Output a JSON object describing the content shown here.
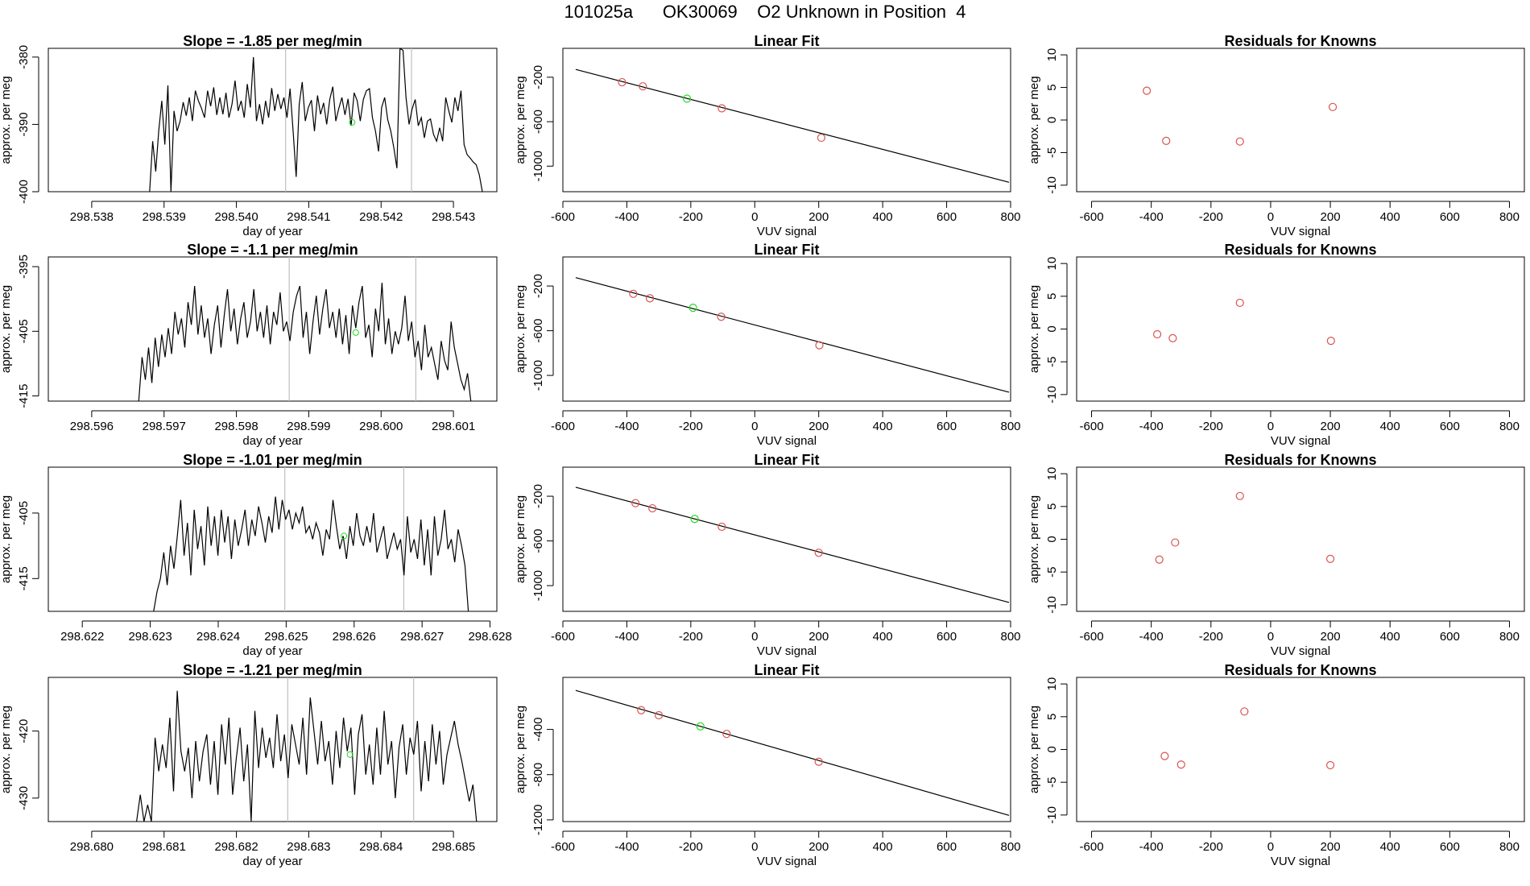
{
  "header": {
    "title": "101025a      OK30069    O2 Unknown in Position  4"
  },
  "colors": {
    "known": "#d9534f",
    "unknown": "#22dd22",
    "line": "#000000",
    "vline": "#bfbfbf"
  },
  "chart_data": [
    {
      "type": "line",
      "panel": "timeseries-1",
      "title": "Slope =  -1.85  per meg/min",
      "xlabel": "day of year",
      "ylabel": "approx. per meg",
      "xlim": [
        298.5374,
        298.5436
      ],
      "ylim": [
        -400,
        -378.7
      ],
      "xticks": [
        298.538,
        298.539,
        298.54,
        298.541,
        298.542,
        298.543
      ],
      "xtick_labels": [
        "298.538",
        "298.539",
        "298.540",
        "298.541",
        "298.542",
        "298.543"
      ],
      "yticks": [
        -380,
        -390,
        -400
      ],
      "ytick_labels": [
        "-380",
        "-390",
        "-400"
      ],
      "x_start": 298.5388,
      "x_end": 298.5434,
      "series_values": [
        -400,
        -392.5,
        -397,
        -391,
        -386.5,
        -393,
        -384.2,
        -400,
        -388,
        -391,
        -389.5,
        -386.7,
        -388.7,
        -386,
        -389.5,
        -385,
        -386.5,
        -387.6,
        -389,
        -385,
        -387.3,
        -384.5,
        -388.6,
        -386,
        -388.5,
        -385.3,
        -389,
        -387,
        -383.5,
        -388,
        -386.5,
        -389,
        -384,
        -387.5,
        -380,
        -389.5,
        -387,
        -390,
        -386.5,
        -389,
        -384.6,
        -388,
        -385.5,
        -387.7,
        -386,
        -389,
        -384.7,
        -391,
        -397.8,
        -387,
        -383.7,
        -389.5,
        -387.5,
        -386.4,
        -391,
        -385.7,
        -388.5,
        -386.8,
        -390,
        -386.3,
        -384.4,
        -389.5,
        -387.6,
        -386,
        -388.6,
        -386.2,
        -390.2,
        -385.3,
        -386.5,
        -389.5,
        -386.3,
        -385,
        -384.7,
        -389,
        -391,
        -394,
        -387.5,
        -386,
        -389.3,
        -391,
        -393.5,
        -396.5,
        -378.7,
        -379,
        -386,
        -390,
        -387.7,
        -386.3,
        -390.2,
        -389,
        -392,
        -389.5,
        -389.2,
        -391.5,
        -392.5,
        -390.5,
        -392.5,
        -386,
        -388,
        -389.7,
        -386,
        -388,
        -385,
        -393,
        -394.5,
        -395,
        -395.6,
        -396,
        -397.5,
        -400
      ],
      "vlines": [
        298.54068,
        298.54242
      ],
      "unknown_point": {
        "x": 298.5416,
        "y": -389.7
      }
    },
    {
      "type": "scatter",
      "panel": "linear-fit-1",
      "title": "Linear Fit",
      "xlabel": "VUV signal",
      "ylabel": "approx. per meg",
      "xlim": [
        -600,
        800
      ],
      "ylim": [
        -1230,
        60
      ],
      "xticks": [
        -600,
        -400,
        -200,
        0,
        200,
        400,
        600,
        800
      ],
      "xtick_labels": [
        "-600",
        "-400",
        "-200",
        "0",
        "200",
        "400",
        "600",
        "800"
      ],
      "yticks": [
        -200,
        -600,
        -1000
      ],
      "ytick_labels": [
        "-200",
        "-600",
        "-1000"
      ],
      "fit_line": {
        "x": [
          -560,
          795
        ],
        "y": [
          -130,
          -1145
        ]
      },
      "known_points": [
        {
          "x": -415,
          "y": -245
        },
        {
          "x": -350,
          "y": -282
        },
        {
          "x": -103,
          "y": -480
        },
        {
          "x": 208,
          "y": -745
        }
      ],
      "unknown_points": [
        {
          "x": -212,
          "y": -393
        }
      ]
    },
    {
      "type": "scatter",
      "panel": "residuals-1",
      "title": "Residuals for Knowns",
      "xlabel": "VUV signal",
      "ylabel": "approx. per meg",
      "xlim": [
        -650,
        850
      ],
      "ylim": [
        -11,
        11
      ],
      "xticks": [
        -600,
        -400,
        -200,
        0,
        200,
        400,
        600,
        800
      ],
      "xtick_labels": [
        "-600",
        "-400",
        "-200",
        "0",
        "200",
        "400",
        "600",
        "800"
      ],
      "yticks": [
        10,
        5,
        0,
        -5,
        -10
      ],
      "ytick_labels": [
        "10",
        "5",
        "0",
        "-5",
        "-10"
      ],
      "known_points": [
        {
          "x": -415,
          "y": 4.5
        },
        {
          "x": -350,
          "y": -3.2
        },
        {
          "x": -103,
          "y": -3.3
        },
        {
          "x": 208,
          "y": 2.0
        }
      ]
    },
    {
      "type": "line",
      "panel": "timeseries-2",
      "title": "Slope =  -1.1  per meg/min",
      "xlabel": "day of year",
      "ylabel": "approx. per meg",
      "xlim": [
        298.5954,
        298.6016
      ],
      "ylim": [
        -415.8,
        -393.5
      ],
      "xticks": [
        298.596,
        298.597,
        298.598,
        298.599,
        298.6,
        298.601
      ],
      "xtick_labels": [
        "298.596",
        "298.597",
        "298.598",
        "298.599",
        "298.600",
        "298.601"
      ],
      "yticks": [
        -395,
        -405,
        -415
      ],
      "ytick_labels": [
        "-395",
        "-405",
        "-415"
      ],
      "x_start": 298.59665,
      "x_end": 298.60124,
      "series_values": [
        -415.8,
        -409,
        -412.5,
        -407.5,
        -413,
        -406,
        -410.5,
        -405.5,
        -409,
        -404.5,
        -408.5,
        -402,
        -405.5,
        -403,
        -407.5,
        -400.5,
        -404,
        -398,
        -405.5,
        -401,
        -406,
        -403,
        -408.5,
        -404,
        -401,
        -407.5,
        -402.5,
        -398.5,
        -405,
        -401.5,
        -407,
        -403,
        -400.5,
        -406,
        -403.5,
        -398.5,
        -405,
        -402,
        -406,
        -401,
        -407,
        -402,
        -404,
        -399,
        -405,
        -403.5,
        -406.5,
        -402,
        -399.5,
        -398,
        -406,
        -402,
        -408.5,
        -403.5,
        -399.5,
        -405.5,
        -401.5,
        -398.5,
        -404.5,
        -402,
        -406,
        -401.5,
        -407,
        -402.5,
        -408.5,
        -401,
        -404.5,
        -400.5,
        -398,
        -406,
        -404,
        -409,
        -401.5,
        -405,
        -397.5,
        -407,
        -403,
        -408.5,
        -405,
        -407,
        -404.5,
        -399.5,
        -406.5,
        -403.5,
        -409,
        -406.5,
        -411,
        -404,
        -409,
        -407.5,
        -410,
        -412.5,
        -406.5,
        -409.5,
        -411,
        -403.5,
        -407.5,
        -410,
        -412.5,
        -414,
        -411.5,
        -415.8
      ],
      "vlines": [
        298.59873,
        298.60048
      ],
      "unknown_point": {
        "x": 298.59965,
        "y": -405.2
      }
    },
    {
      "type": "scatter",
      "panel": "linear-fit-2",
      "title": "Linear Fit",
      "xlabel": "VUV signal",
      "ylabel": "approx. per meg",
      "xlim": [
        -600,
        800
      ],
      "ylim": [
        -1230,
        60
      ],
      "xticks": [
        -600,
        -400,
        -200,
        0,
        200,
        400,
        600,
        800
      ],
      "xtick_labels": [
        "-600",
        "-400",
        "-200",
        "0",
        "200",
        "400",
        "600",
        "800"
      ],
      "yticks": [
        -200,
        -600,
        -1000
      ],
      "ytick_labels": [
        "-200",
        "-600",
        "-1000"
      ],
      "fit_line": {
        "x": [
          -560,
          795
        ],
        "y": [
          -125,
          -1150
        ]
      },
      "known_points": [
        {
          "x": -380,
          "y": -270
        },
        {
          "x": -328,
          "y": -310
        },
        {
          "x": -105,
          "y": -475
        },
        {
          "x": 202,
          "y": -730
        }
      ],
      "unknown_points": [
        {
          "x": -193,
          "y": -395
        }
      ]
    },
    {
      "type": "scatter",
      "panel": "residuals-2",
      "title": "Residuals for Knowns",
      "xlabel": "VUV signal",
      "ylabel": "approx. per meg",
      "xlim": [
        -650,
        850
      ],
      "ylim": [
        -11,
        11
      ],
      "xticks": [
        -600,
        -400,
        -200,
        0,
        200,
        400,
        600,
        800
      ],
      "xtick_labels": [
        "-600",
        "-400",
        "-200",
        "0",
        "200",
        "400",
        "600",
        "800"
      ],
      "yticks": [
        10,
        5,
        0,
        -5,
        -10
      ],
      "ytick_labels": [
        "10",
        "5",
        "0",
        "-5",
        "-10"
      ],
      "known_points": [
        {
          "x": -380,
          "y": -0.8
        },
        {
          "x": -328,
          "y": -1.4
        },
        {
          "x": -103,
          "y": 4.0
        },
        {
          "x": 202,
          "y": -1.8
        }
      ]
    },
    {
      "type": "line",
      "panel": "timeseries-3",
      "title": "Slope =  -1.01  per meg/min",
      "xlabel": "day of year",
      "ylabel": "approx. per meg",
      "xlim": [
        298.6215,
        298.6281
      ],
      "ylim": [
        -420,
        -398
      ],
      "xticks": [
        298.622,
        298.623,
        298.624,
        298.625,
        298.626,
        298.627,
        298.628
      ],
      "xtick_labels": [
        "298.622",
        "298.623",
        "298.624",
        "298.625",
        "298.626",
        "298.627",
        "298.628"
      ],
      "yticks": [
        -405,
        -415
      ],
      "ytick_labels": [
        "-405",
        "-415"
      ],
      "x_start": 298.62305,
      "x_end": 298.62768,
      "series_values": [
        -420,
        -417,
        -415,
        -411,
        -416,
        -410,
        -413.5,
        -408.5,
        -403,
        -411.5,
        -406.5,
        -414.5,
        -404.5,
        -410.5,
        -407,
        -413,
        -404,
        -410,
        -405.5,
        -411.5,
        -404.5,
        -409.5,
        -405.5,
        -412,
        -406,
        -410,
        -407.5,
        -404.5,
        -410,
        -406,
        -408.5,
        -404,
        -406.5,
        -409.5,
        -405.5,
        -408,
        -402.5,
        -407.5,
        -403,
        -406,
        -404.5,
        -407.5,
        -405,
        -406.5,
        -404,
        -408,
        -407,
        -409,
        -406.5,
        -408,
        -411.5,
        -407.5,
        -409,
        -403,
        -407,
        -410.5,
        -408.5,
        -412,
        -407,
        -410,
        -405,
        -408.5,
        -410,
        -407,
        -409.5,
        -405,
        -411,
        -409,
        -407,
        -412,
        -410,
        -408,
        -410.5,
        -409,
        -414.5,
        -405.5,
        -411,
        -409,
        -412,
        -406,
        -413,
        -407.5,
        -414.5,
        -405.5,
        -411.5,
        -409,
        -404.5,
        -410.5,
        -409,
        -412.5,
        -407.5,
        -410,
        -413,
        -420
      ],
      "vlines": [
        298.62498,
        298.62673
      ],
      "unknown_point": {
        "x": 298.62585,
        "y": -408.5
      }
    },
    {
      "type": "scatter",
      "panel": "linear-fit-3",
      "title": "Linear Fit",
      "xlabel": "VUV signal",
      "ylabel": "approx. per meg",
      "xlim": [
        -600,
        800
      ],
      "ylim": [
        -1230,
        60
      ],
      "xticks": [
        -600,
        -400,
        -200,
        0,
        200,
        400,
        600,
        800
      ],
      "xtick_labels": [
        "-600",
        "-400",
        "-200",
        "0",
        "200",
        "400",
        "600",
        "800"
      ],
      "yticks": [
        -200,
        -600,
        -1000
      ],
      "ytick_labels": [
        "-200",
        "-600",
        "-1000"
      ],
      "fit_line": {
        "x": [
          -560,
          795
        ],
        "y": [
          -120,
          -1150
        ]
      },
      "known_points": [
        {
          "x": -373,
          "y": -262
        },
        {
          "x": -320,
          "y": -308
        },
        {
          "x": -103,
          "y": -473
        },
        {
          "x": 200,
          "y": -706
        }
      ],
      "unknown_points": [
        {
          "x": -188,
          "y": -403
        }
      ]
    },
    {
      "type": "scatter",
      "panel": "residuals-3",
      "title": "Residuals for Knowns",
      "xlabel": "VUV signal",
      "ylabel": "approx. per meg",
      "xlim": [
        -650,
        850
      ],
      "ylim": [
        -11,
        11
      ],
      "xticks": [
        -600,
        -400,
        -200,
        0,
        200,
        400,
        600,
        800
      ],
      "xtick_labels": [
        "-600",
        "-400",
        "-200",
        "0",
        "200",
        "400",
        "600",
        "800"
      ],
      "yticks": [
        10,
        5,
        0,
        -5,
        -10
      ],
      "ytick_labels": [
        "10",
        "5",
        "0",
        "-5",
        "-10"
      ],
      "known_points": [
        {
          "x": -373,
          "y": -3.1
        },
        {
          "x": -320,
          "y": -0.5
        },
        {
          "x": -103,
          "y": 6.6
        },
        {
          "x": 200,
          "y": -3.0
        }
      ]
    },
    {
      "type": "line",
      "panel": "timeseries-4",
      "title": "Slope =  -1.21  per meg/min",
      "xlabel": "day of year",
      "ylabel": "approx. per meg",
      "xlim": [
        298.6794,
        298.6856
      ],
      "ylim": [
        -433.5,
        -412
      ],
      "xticks": [
        298.68,
        298.681,
        298.682,
        298.683,
        298.684,
        298.685
      ],
      "xtick_labels": [
        "298.680",
        "298.681",
        "298.682",
        "298.683",
        "298.684",
        "298.685"
      ],
      "yticks": [
        -420,
        -430
      ],
      "ytick_labels": [
        "-420",
        "-430"
      ],
      "x_start": 298.68062,
      "x_end": 298.68532,
      "series_values": [
        -433.5,
        -429.5,
        -433.5,
        -431,
        -433.5,
        -421,
        -426,
        -422,
        -425.5,
        -418,
        -429,
        -414,
        -423,
        -426,
        -422.5,
        -430,
        -421.5,
        -427.5,
        -423,
        -420.5,
        -428,
        -421.5,
        -429.5,
        -419,
        -425,
        -418,
        -429.5,
        -424,
        -419.5,
        -427.5,
        -422,
        -433.5,
        -417,
        -425.5,
        -419.5,
        -424,
        -421,
        -425.5,
        -417.5,
        -424.5,
        -420.5,
        -427,
        -419,
        -422,
        -425,
        -418,
        -426.5,
        -415,
        -420,
        -425,
        -418.5,
        -424.5,
        -421.5,
        -428,
        -420,
        -425.5,
        -418,
        -423,
        -419.5,
        -429.5,
        -420.5,
        -417.5,
        -426.5,
        -422,
        -428,
        -419.5,
        -426.5,
        -417,
        -425,
        -421.5,
        -430,
        -422.5,
        -419,
        -426.5,
        -421,
        -423.5,
        -418.5,
        -429,
        -421.5,
        -427.5,
        -419,
        -425,
        -420,
        -428,
        -423.5,
        -421,
        -418.5,
        -422,
        -424.5,
        -427.5,
        -430.5,
        -428,
        -433.5
      ],
      "vlines": [
        298.68271,
        298.68445
      ],
      "unknown_point": {
        "x": 298.68357,
        "y": -423.5
      }
    },
    {
      "type": "scatter",
      "panel": "linear-fit-4",
      "title": "Linear Fit",
      "xlabel": "VUV signal",
      "ylabel": "approx. per meg",
      "xlim": [
        -600,
        800
      ],
      "ylim": [
        -1215,
        60
      ],
      "xticks": [
        -600,
        -400,
        -200,
        0,
        200,
        400,
        600,
        800
      ],
      "xtick_labels": [
        "-600",
        "-400",
        "-200",
        "0",
        "200",
        "400",
        "600",
        "800"
      ],
      "yticks": [
        -400,
        -800,
        -1200
      ],
      "ytick_labels": [
        "-400",
        "-800",
        "-1200"
      ],
      "fit_line": {
        "x": [
          -560,
          795
        ],
        "y": [
          -55,
          -1160
        ]
      },
      "known_points": [
        {
          "x": -355,
          "y": -230
        },
        {
          "x": -300,
          "y": -275
        },
        {
          "x": -88,
          "y": -440
        },
        {
          "x": 200,
          "y": -686
        }
      ],
      "unknown_points": [
        {
          "x": -170,
          "y": -373
        }
      ]
    },
    {
      "type": "scatter",
      "panel": "residuals-4",
      "title": "Residuals for Knowns",
      "xlabel": "VUV signal",
      "ylabel": "approx. per meg",
      "xlim": [
        -650,
        850
      ],
      "ylim": [
        -11,
        11
      ],
      "xticks": [
        -600,
        -400,
        -200,
        0,
        200,
        400,
        600,
        800
      ],
      "xtick_labels": [
        "-600",
        "-400",
        "-200",
        "0",
        "200",
        "400",
        "600",
        "800"
      ],
      "yticks": [
        10,
        5,
        0,
        -5,
        -10
      ],
      "ytick_labels": [
        "10",
        "5",
        "0",
        "-5",
        "-10"
      ],
      "known_points": [
        {
          "x": -355,
          "y": -1.0
        },
        {
          "x": -300,
          "y": -2.3
        },
        {
          "x": -88,
          "y": 5.8
        },
        {
          "x": 200,
          "y": -2.4
        }
      ]
    }
  ]
}
